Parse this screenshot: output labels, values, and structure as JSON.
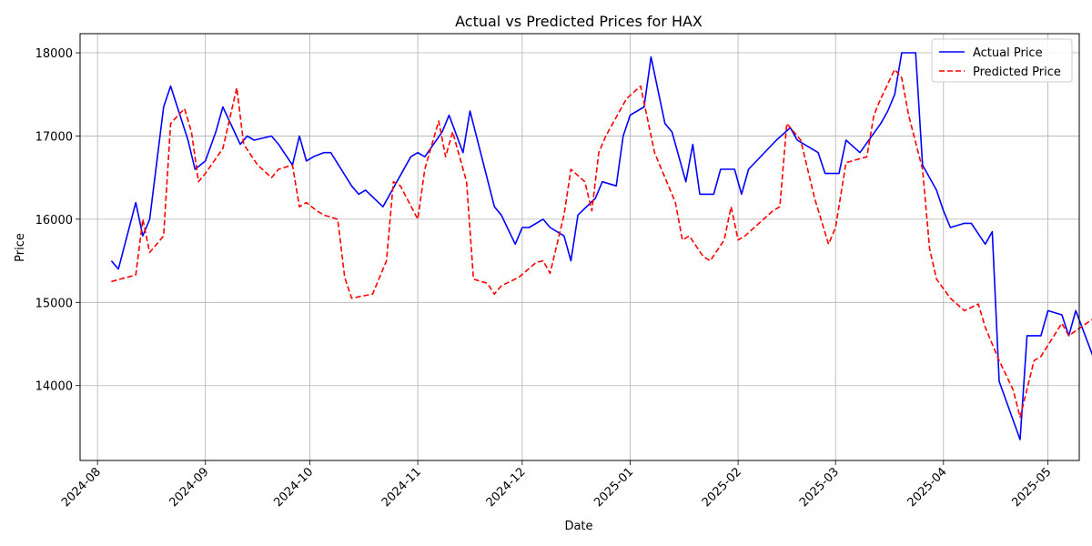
{
  "chart_data": {
    "type": "line",
    "title": "Actual vs Predicted Prices for HAX",
    "xlabel": "Date",
    "ylabel": "Price",
    "x_type": "date",
    "xlim": [
      "2024-07-27",
      "2025-05-10"
    ],
    "ylim": [
      13100,
      18230
    ],
    "x_ticks": [
      "2024-08",
      "2024-09",
      "2024-10",
      "2024-11",
      "2024-12",
      "2025-01",
      "2025-02",
      "2025-03",
      "2025-04",
      "2025-05"
    ],
    "y_ticks": [
      14000,
      15000,
      16000,
      17000,
      18000
    ],
    "grid": true,
    "legend_position": "top-right",
    "series": [
      {
        "name": "Actual Price",
        "color": "#0000ff",
        "style": "solid",
        "points": [
          [
            "2024-08-05",
            15500
          ],
          [
            "2024-08-07",
            15400
          ],
          [
            "2024-08-12",
            16200
          ],
          [
            "2024-08-14",
            15800
          ],
          [
            "2024-08-16",
            16000
          ],
          [
            "2024-08-20",
            17350
          ],
          [
            "2024-08-22",
            17600
          ],
          [
            "2024-08-27",
            16950
          ],
          [
            "2024-08-29",
            16600
          ],
          [
            "2024-09-01",
            16700
          ],
          [
            "2024-09-04",
            17050
          ],
          [
            "2024-09-06",
            17350
          ],
          [
            "2024-09-11",
            16900
          ],
          [
            "2024-09-13",
            17000
          ],
          [
            "2024-09-15",
            16950
          ],
          [
            "2024-09-20",
            17000
          ],
          [
            "2024-09-22",
            16900
          ],
          [
            "2024-09-26",
            16650
          ],
          [
            "2024-09-28",
            17000
          ],
          [
            "2024-09-30",
            16700
          ],
          [
            "2024-10-02",
            16750
          ],
          [
            "2024-10-05",
            16800
          ],
          [
            "2024-10-07",
            16800
          ],
          [
            "2024-10-13",
            16400
          ],
          [
            "2024-10-15",
            16300
          ],
          [
            "2024-10-17",
            16350
          ],
          [
            "2024-10-22",
            16150
          ],
          [
            "2024-10-24",
            16300
          ],
          [
            "2024-10-30",
            16750
          ],
          [
            "2024-11-01",
            16800
          ],
          [
            "2024-11-03",
            16750
          ],
          [
            "2024-11-08",
            17050
          ],
          [
            "2024-11-10",
            17250
          ],
          [
            "2024-11-14",
            16800
          ],
          [
            "2024-11-16",
            17300
          ],
          [
            "2024-11-23",
            16150
          ],
          [
            "2024-11-25",
            16050
          ],
          [
            "2024-11-29",
            15700
          ],
          [
            "2024-12-01",
            15900
          ],
          [
            "2024-12-03",
            15900
          ],
          [
            "2024-12-07",
            16000
          ],
          [
            "2024-12-09",
            15900
          ],
          [
            "2024-12-13",
            15800
          ],
          [
            "2024-12-15",
            15500
          ],
          [
            "2024-12-17",
            16050
          ],
          [
            "2024-12-22",
            16250
          ],
          [
            "2024-12-24",
            16450
          ],
          [
            "2024-12-28",
            16400
          ],
          [
            "2024-12-30",
            17000
          ],
          [
            "2025-01-01",
            17250
          ],
          [
            "2025-01-05",
            17350
          ],
          [
            "2025-01-07",
            17950
          ],
          [
            "2025-01-11",
            17150
          ],
          [
            "2025-01-13",
            17050
          ],
          [
            "2025-01-17",
            16450
          ],
          [
            "2025-01-19",
            16900
          ],
          [
            "2025-01-21",
            16300
          ],
          [
            "2025-01-25",
            16300
          ],
          [
            "2025-01-27",
            16600
          ],
          [
            "2025-01-31",
            16600
          ],
          [
            "2025-02-02",
            16300
          ],
          [
            "2025-02-04",
            16600
          ],
          [
            "2025-02-12",
            16950
          ],
          [
            "2025-02-16",
            17100
          ],
          [
            "2025-02-18",
            16950
          ],
          [
            "2025-02-24",
            16800
          ],
          [
            "2025-02-26",
            16550
          ],
          [
            "2025-03-02",
            16550
          ],
          [
            "2025-03-04",
            16950
          ],
          [
            "2025-03-08",
            16800
          ],
          [
            "2025-03-14",
            17150
          ],
          [
            "2025-03-16",
            17300
          ],
          [
            "2025-03-18",
            17500
          ],
          [
            "2025-03-20",
            18000
          ],
          [
            "2025-03-24",
            18000
          ],
          [
            "2025-03-26",
            16650
          ],
          [
            "2025-03-30",
            16350
          ],
          [
            "2025-04-01",
            16100
          ],
          [
            "2025-04-03",
            15900
          ],
          [
            "2025-04-07",
            15950
          ],
          [
            "2025-04-09",
            15950
          ],
          [
            "2025-04-13",
            15700
          ],
          [
            "2025-04-15",
            15850
          ],
          [
            "2025-04-17",
            14050
          ],
          [
            "2025-04-23",
            13350
          ],
          [
            "2025-04-25",
            14600
          ],
          [
            "2025-04-29",
            14600
          ],
          [
            "2025-05-01",
            14900
          ],
          [
            "2025-05-05",
            14850
          ],
          [
            "2025-05-07",
            14600
          ],
          [
            "2025-05-09",
            14900
          ],
          [
            "2025-05-18",
            13900
          ]
        ]
      },
      {
        "name": "Predicted Price",
        "color": "#ff0000",
        "style": "dashed",
        "points": [
          [
            "2024-08-05",
            15250
          ],
          [
            "2024-08-12",
            15330
          ],
          [
            "2024-08-14",
            16000
          ],
          [
            "2024-08-16",
            15600
          ],
          [
            "2024-08-20",
            15800
          ],
          [
            "2024-08-22",
            17150
          ],
          [
            "2024-08-26",
            17330
          ],
          [
            "2024-08-28",
            17050
          ],
          [
            "2024-08-30",
            16450
          ],
          [
            "2024-09-01",
            16550
          ],
          [
            "2024-09-06",
            16850
          ],
          [
            "2024-09-10",
            17580
          ],
          [
            "2024-09-12",
            16900
          ],
          [
            "2024-09-16",
            16650
          ],
          [
            "2024-09-20",
            16500
          ],
          [
            "2024-09-22",
            16600
          ],
          [
            "2024-09-26",
            16650
          ],
          [
            "2024-09-28",
            16150
          ],
          [
            "2024-09-30",
            16200
          ],
          [
            "2024-10-03",
            16100
          ],
          [
            "2024-10-05",
            16050
          ],
          [
            "2024-10-09",
            16000
          ],
          [
            "2024-10-11",
            15300
          ],
          [
            "2024-10-13",
            15050
          ],
          [
            "2024-10-19",
            15100
          ],
          [
            "2024-10-23",
            15500
          ],
          [
            "2024-10-25",
            16450
          ],
          [
            "2024-10-27",
            16400
          ],
          [
            "2024-11-01",
            16000
          ],
          [
            "2024-11-03",
            16600
          ],
          [
            "2024-11-07",
            17180
          ],
          [
            "2024-11-09",
            16750
          ],
          [
            "2024-11-11",
            17050
          ],
          [
            "2024-11-15",
            16450
          ],
          [
            "2024-11-17",
            15280
          ],
          [
            "2024-11-21",
            15230
          ],
          [
            "2024-11-23",
            15100
          ],
          [
            "2024-11-25",
            15200
          ],
          [
            "2024-11-30",
            15300
          ],
          [
            "2024-12-05",
            15480
          ],
          [
            "2024-12-07",
            15500
          ],
          [
            "2024-12-09",
            15350
          ],
          [
            "2024-12-13",
            16050
          ],
          [
            "2024-12-15",
            16600
          ],
          [
            "2024-12-19",
            16450
          ],
          [
            "2024-12-21",
            16100
          ],
          [
            "2024-12-23",
            16800
          ],
          [
            "2024-12-25",
            17000
          ],
          [
            "2024-12-27",
            17150
          ],
          [
            "2024-12-31",
            17450
          ],
          [
            "2025-01-04",
            17600
          ],
          [
            "2025-01-08",
            16800
          ],
          [
            "2025-01-10",
            16600
          ],
          [
            "2025-01-14",
            16200
          ],
          [
            "2025-01-16",
            15750
          ],
          [
            "2025-01-18",
            15800
          ],
          [
            "2025-01-22",
            15550
          ],
          [
            "2025-01-24",
            15500
          ],
          [
            "2025-01-28",
            15750
          ],
          [
            "2025-01-30",
            16150
          ],
          [
            "2025-02-01",
            15750
          ],
          [
            "2025-02-03",
            15800
          ],
          [
            "2025-02-11",
            16100
          ],
          [
            "2025-02-13",
            16150
          ],
          [
            "2025-02-15",
            17150
          ],
          [
            "2025-02-19",
            16950
          ],
          [
            "2025-02-23",
            16250
          ],
          [
            "2025-02-27",
            15700
          ],
          [
            "2025-02-29",
            15900
          ],
          [
            "2025-03-04",
            16680
          ],
          [
            "2025-03-10",
            16750
          ],
          [
            "2025-03-12",
            17250
          ],
          [
            "2025-03-14",
            17450
          ],
          [
            "2025-03-18",
            17800
          ],
          [
            "2025-03-20",
            17700
          ],
          [
            "2025-03-22",
            17250
          ],
          [
            "2025-03-26",
            16600
          ],
          [
            "2025-03-28",
            15650
          ],
          [
            "2025-03-30",
            15280
          ],
          [
            "2025-04-03",
            15050
          ],
          [
            "2025-04-07",
            14900
          ],
          [
            "2025-04-11",
            14980
          ],
          [
            "2025-04-13",
            14700
          ],
          [
            "2025-04-17",
            14300
          ],
          [
            "2025-04-21",
            13950
          ],
          [
            "2025-04-23",
            13620
          ],
          [
            "2025-04-27",
            14300
          ],
          [
            "2025-04-29",
            14350
          ],
          [
            "2025-05-05",
            14750
          ],
          [
            "2025-05-07",
            14600
          ],
          [
            "2025-05-18",
            14920
          ]
        ]
      }
    ]
  }
}
